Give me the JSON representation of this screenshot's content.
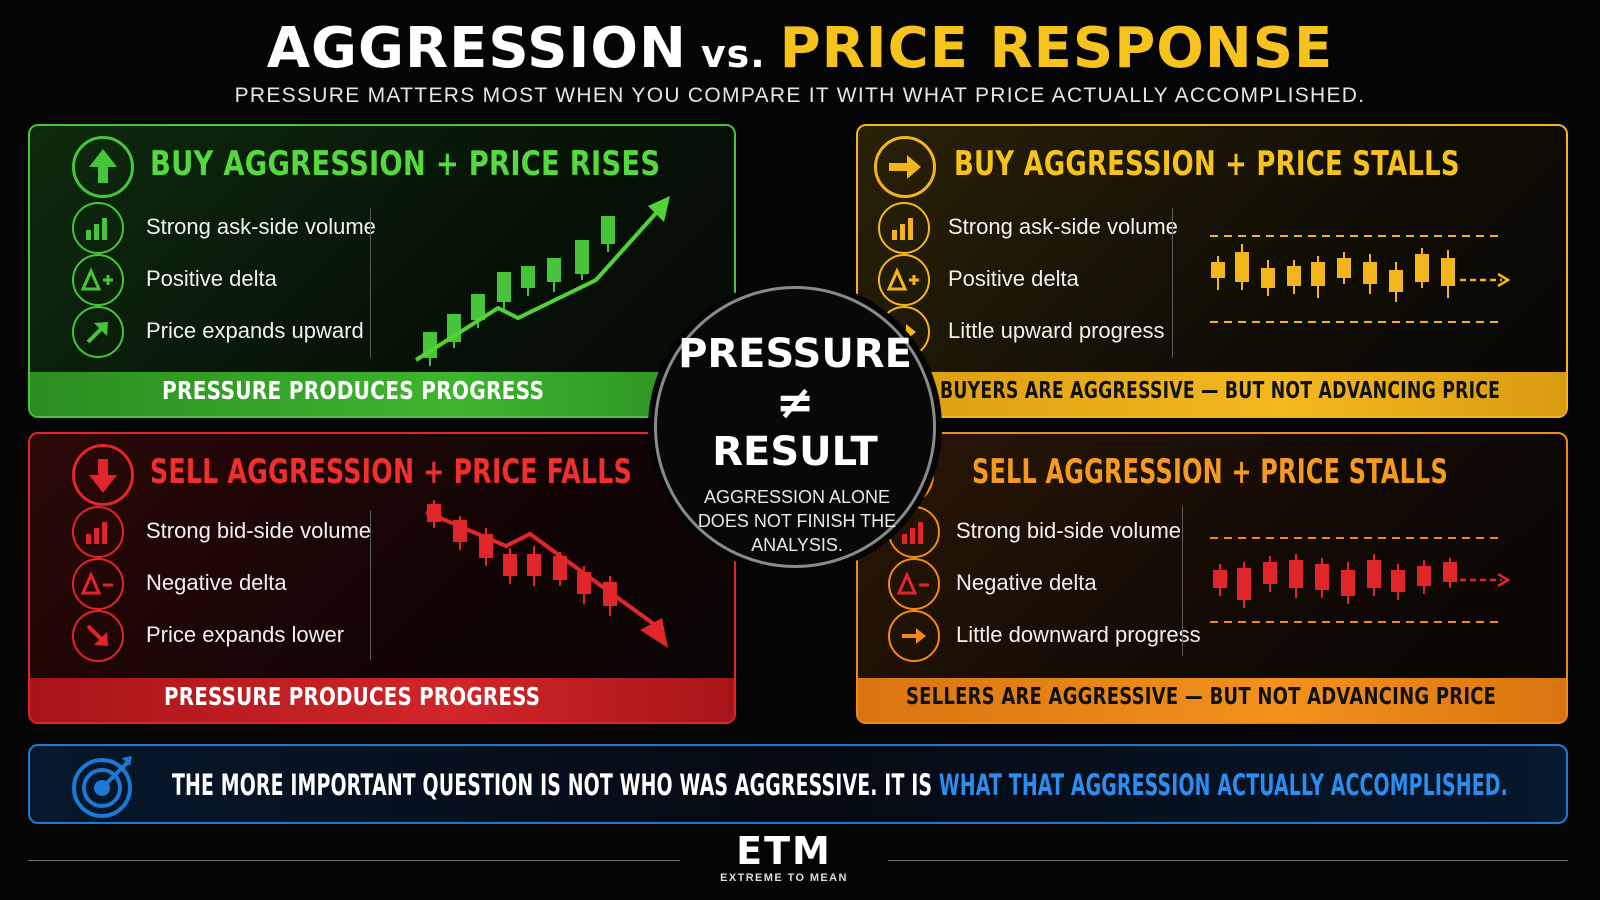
{
  "header": {
    "title_left": "AGGRESSION",
    "title_vs": "vs.",
    "title_right": "PRICE RESPONSE",
    "subtitle": "PRESSURE MATTERS MOST WHEN YOU COMPARE IT WITH WHAT PRICE ACTUALLY ACCOMPLISHED."
  },
  "colors": {
    "green": "#46c53a",
    "yellow": "#f2b51b",
    "red": "#e0262a",
    "orange": "#f08a17",
    "blue": "#1c7ad6",
    "title_accent": "#f6c21c"
  },
  "panels": {
    "buy_rise": {
      "title": "BUY AGGRESSION + PRICE RISES",
      "icon": "up-arrow-icon",
      "rows": [
        {
          "icon": "bar-chart-icon",
          "text": "Strong ask-side volume"
        },
        {
          "icon": "delta-plus-icon",
          "text": "Positive delta"
        },
        {
          "icon": "arrow-up-right-icon",
          "text": "Price expands upward"
        }
      ],
      "banner": "PRESSURE PRODUCES PROGRESS"
    },
    "buy_stall": {
      "title": "BUY AGGRESSION + PRICE STALLS",
      "icon": "right-arrow-icon",
      "rows": [
        {
          "icon": "bar-chart-icon",
          "text": "Strong ask-side volume"
        },
        {
          "icon": "delta-plus-icon",
          "text": "Positive delta"
        },
        {
          "icon": "right-arrow-icon",
          "text": "Little upward progress"
        }
      ],
      "banner": "BUYERS ARE AGGRESSIVE — BUT NOT ADVANCING PRICE"
    },
    "sell_fall": {
      "title": "SELL AGGRESSION + PRICE FALLS",
      "icon": "down-arrow-icon",
      "rows": [
        {
          "icon": "bar-chart-icon",
          "text": "Strong bid-side volume"
        },
        {
          "icon": "delta-minus-icon",
          "text": "Negative delta"
        },
        {
          "icon": "arrow-down-right-icon",
          "text": "Price expands lower"
        }
      ],
      "banner": "PRESSURE PRODUCES PROGRESS"
    },
    "sell_stall": {
      "title": "SELL AGGRESSION + PRICE STALLS",
      "icon": "right-arrow-icon",
      "rows": [
        {
          "icon": "bar-chart-icon",
          "text": "Strong bid-side volume"
        },
        {
          "icon": "delta-minus-icon",
          "text": "Negative delta"
        },
        {
          "icon": "right-arrow-icon",
          "text": "Little downward progress"
        }
      ],
      "banner": "SELLERS ARE AGGRESSIVE — BUT NOT ADVANCING PRICE"
    }
  },
  "center": {
    "line1": "PRESSURE",
    "symbol": "≠",
    "line2": "RESULT",
    "note": "AGGRESSION ALONE DOES NOT FINISH THE ANALYSIS."
  },
  "bottom": {
    "text_white": "THE MORE IMPORTANT QUESTION IS NOT WHO WAS AGGRESSIVE. IT IS",
    "text_blue": "WHAT THAT AGGRESSION ACTUALLY ACCOMPLISHED.",
    "icon": "target-icon"
  },
  "footer": {
    "logo": "ETM",
    "tagline": "EXTREME TO MEAN"
  }
}
